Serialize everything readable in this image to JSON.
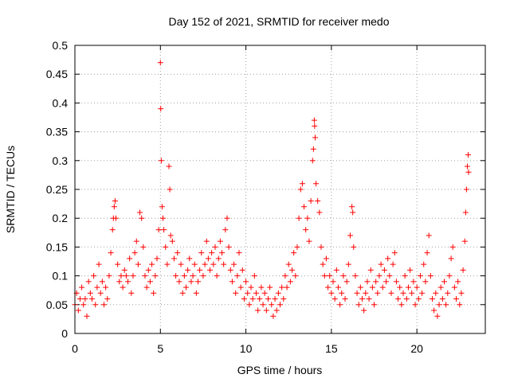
{
  "chart_data": {
    "type": "scatter",
    "title": "Day 152 of 2021, SRMTID for receiver medo",
    "xlabel": "GPS time / hours",
    "ylabel": "SRMTID / TECUs",
    "xlim": [
      0,
      24
    ],
    "ylim": [
      0,
      0.5
    ],
    "x_ticks": [
      0,
      5,
      10,
      15,
      20
    ],
    "x_tick_labels": [
      "0",
      "5",
      "10",
      "15",
      "20"
    ],
    "y_ticks": [
      0,
      0.05,
      0.1,
      0.15,
      0.2,
      0.25,
      0.3,
      0.35,
      0.4,
      0.45,
      0.5
    ],
    "y_tick_labels": [
      "0",
      "0.05",
      "0.1",
      "0.15",
      "0.2",
      "0.25",
      "0.3",
      "0.35",
      "0.4",
      "0.45",
      "0.5"
    ],
    "grid": true,
    "marker": "+",
    "color": "#ff0000",
    "series": [
      {
        "name": "SRMTID",
        "points": [
          [
            0.0,
            0.05
          ],
          [
            0.1,
            0.07
          ],
          [
            0.2,
            0.04
          ],
          [
            0.3,
            0.06
          ],
          [
            0.4,
            0.08
          ],
          [
            0.5,
            0.05
          ],
          [
            0.6,
            0.06
          ],
          [
            0.7,
            0.03
          ],
          [
            0.8,
            0.09
          ],
          [
            0.9,
            0.07
          ],
          [
            1.0,
            0.06
          ],
          [
            1.1,
            0.1
          ],
          [
            1.2,
            0.05
          ],
          [
            1.3,
            0.08
          ],
          [
            1.4,
            0.12
          ],
          [
            1.5,
            0.07
          ],
          [
            1.6,
            0.09
          ],
          [
            1.7,
            0.05
          ],
          [
            1.8,
            0.08
          ],
          [
            1.9,
            0.06
          ],
          [
            2.0,
            0.1
          ],
          [
            2.1,
            0.14
          ],
          [
            2.2,
            0.18
          ],
          [
            2.25,
            0.2
          ],
          [
            2.3,
            0.22
          ],
          [
            2.35,
            0.23
          ],
          [
            2.4,
            0.2
          ],
          [
            2.5,
            0.12
          ],
          [
            2.6,
            0.09
          ],
          [
            2.7,
            0.1
          ],
          [
            2.8,
            0.08
          ],
          [
            2.9,
            0.11
          ],
          [
            3.0,
            0.1
          ],
          [
            3.1,
            0.09
          ],
          [
            3.2,
            0.13
          ],
          [
            3.3,
            0.07
          ],
          [
            3.4,
            0.1
          ],
          [
            3.5,
            0.14
          ],
          [
            3.6,
            0.16
          ],
          [
            3.7,
            0.12
          ],
          [
            3.8,
            0.21
          ],
          [
            3.9,
            0.2
          ],
          [
            4.0,
            0.15
          ],
          [
            4.1,
            0.1
          ],
          [
            4.2,
            0.08
          ],
          [
            4.3,
            0.11
          ],
          [
            4.4,
            0.09
          ],
          [
            4.5,
            0.12
          ],
          [
            4.6,
            0.07
          ],
          [
            4.7,
            0.1
          ],
          [
            4.8,
            0.13
          ],
          [
            4.9,
            0.18
          ],
          [
            5.0,
            0.47
          ],
          [
            5.02,
            0.39
          ],
          [
            5.05,
            0.3
          ],
          [
            5.1,
            0.22
          ],
          [
            5.15,
            0.2
          ],
          [
            5.2,
            0.18
          ],
          [
            5.3,
            0.15
          ],
          [
            5.4,
            0.12
          ],
          [
            5.5,
            0.29
          ],
          [
            5.55,
            0.25
          ],
          [
            5.6,
            0.17
          ],
          [
            5.7,
            0.16
          ],
          [
            5.8,
            0.13
          ],
          [
            5.9,
            0.1
          ],
          [
            6.0,
            0.14
          ],
          [
            6.1,
            0.09
          ],
          [
            6.2,
            0.12
          ],
          [
            6.3,
            0.07
          ],
          [
            6.4,
            0.1
          ],
          [
            6.5,
            0.08
          ],
          [
            6.6,
            0.11
          ],
          [
            6.7,
            0.13
          ],
          [
            6.8,
            0.09
          ],
          [
            6.9,
            0.1
          ],
          [
            7.0,
            0.12
          ],
          [
            7.1,
            0.07
          ],
          [
            7.2,
            0.09
          ],
          [
            7.3,
            0.11
          ],
          [
            7.4,
            0.14
          ],
          [
            7.5,
            0.1
          ],
          [
            7.6,
            0.12
          ],
          [
            7.7,
            0.16
          ],
          [
            7.8,
            0.13
          ],
          [
            7.9,
            0.11
          ],
          [
            8.0,
            0.14
          ],
          [
            8.1,
            0.12
          ],
          [
            8.2,
            0.15
          ],
          [
            8.3,
            0.1
          ],
          [
            8.4,
            0.13
          ],
          [
            8.5,
            0.16
          ],
          [
            8.6,
            0.14
          ],
          [
            8.7,
            0.12
          ],
          [
            8.8,
            0.18
          ],
          [
            8.9,
            0.2
          ],
          [
            9.0,
            0.15
          ],
          [
            9.1,
            0.11
          ],
          [
            9.2,
            0.09
          ],
          [
            9.3,
            0.12
          ],
          [
            9.4,
            0.07
          ],
          [
            9.5,
            0.1
          ],
          [
            9.6,
            0.14
          ],
          [
            9.7,
            0.08
          ],
          [
            9.8,
            0.11
          ],
          [
            9.9,
            0.06
          ],
          [
            10.0,
            0.09
          ],
          [
            10.1,
            0.07
          ],
          [
            10.2,
            0.05
          ],
          [
            10.3,
            0.08
          ],
          [
            10.4,
            0.06
          ],
          [
            10.5,
            0.1
          ],
          [
            10.6,
            0.07
          ],
          [
            10.7,
            0.04
          ],
          [
            10.8,
            0.06
          ],
          [
            10.9,
            0.08
          ],
          [
            11.0,
            0.05
          ],
          [
            11.1,
            0.07
          ],
          [
            11.2,
            0.04
          ],
          [
            11.3,
            0.06
          ],
          [
            11.4,
            0.08
          ],
          [
            11.5,
            0.05
          ],
          [
            11.6,
            0.03
          ],
          [
            11.7,
            0.06
          ],
          [
            11.8,
            0.04
          ],
          [
            11.9,
            0.07
          ],
          [
            12.0,
            0.05
          ],
          [
            12.1,
            0.08
          ],
          [
            12.2,
            0.06
          ],
          [
            12.3,
            0.1
          ],
          [
            12.4,
            0.08
          ],
          [
            12.5,
            0.12
          ],
          [
            12.6,
            0.09
          ],
          [
            12.7,
            0.11
          ],
          [
            12.8,
            0.14
          ],
          [
            12.9,
            0.1
          ],
          [
            13.0,
            0.15
          ],
          [
            13.1,
            0.2
          ],
          [
            13.2,
            0.25
          ],
          [
            13.3,
            0.26
          ],
          [
            13.4,
            0.22
          ],
          [
            13.5,
            0.18
          ],
          [
            13.6,
            0.2
          ],
          [
            13.7,
            0.16
          ],
          [
            13.8,
            0.23
          ],
          [
            13.9,
            0.3
          ],
          [
            13.95,
            0.32
          ],
          [
            14.0,
            0.37
          ],
          [
            14.02,
            0.36
          ],
          [
            14.05,
            0.34
          ],
          [
            14.1,
            0.26
          ],
          [
            14.2,
            0.23
          ],
          [
            14.3,
            0.21
          ],
          [
            14.4,
            0.15
          ],
          [
            14.5,
            0.12
          ],
          [
            14.6,
            0.1
          ],
          [
            14.7,
            0.13
          ],
          [
            14.8,
            0.08
          ],
          [
            14.9,
            0.1
          ],
          [
            15.0,
            0.07
          ],
          [
            15.1,
            0.09
          ],
          [
            15.2,
            0.06
          ],
          [
            15.3,
            0.11
          ],
          [
            15.4,
            0.08
          ],
          [
            15.5,
            0.05
          ],
          [
            15.6,
            0.07
          ],
          [
            15.7,
            0.1
          ],
          [
            15.8,
            0.06
          ],
          [
            15.9,
            0.09
          ],
          [
            16.0,
            0.12
          ],
          [
            16.1,
            0.17
          ],
          [
            16.2,
            0.22
          ],
          [
            16.25,
            0.21
          ],
          [
            16.3,
            0.15
          ],
          [
            16.4,
            0.1
          ],
          [
            16.5,
            0.07
          ],
          [
            16.6,
            0.05
          ],
          [
            16.7,
            0.08
          ],
          [
            16.8,
            0.06
          ],
          [
            16.9,
            0.04
          ],
          [
            17.0,
            0.07
          ],
          [
            17.1,
            0.09
          ],
          [
            17.2,
            0.06
          ],
          [
            17.3,
            0.11
          ],
          [
            17.4,
            0.08
          ],
          [
            17.5,
            0.05
          ],
          [
            17.6,
            0.09
          ],
          [
            17.7,
            0.07
          ],
          [
            17.8,
            0.1
          ],
          [
            17.9,
            0.12
          ],
          [
            18.0,
            0.08
          ],
          [
            18.1,
            0.11
          ],
          [
            18.2,
            0.09
          ],
          [
            18.3,
            0.13
          ],
          [
            18.4,
            0.1
          ],
          [
            18.5,
            0.07
          ],
          [
            18.6,
            0.12
          ],
          [
            18.7,
            0.14
          ],
          [
            18.8,
            0.09
          ],
          [
            18.9,
            0.06
          ],
          [
            19.0,
            0.08
          ],
          [
            19.1,
            0.05
          ],
          [
            19.2,
            0.07
          ],
          [
            19.3,
            0.1
          ],
          [
            19.4,
            0.06
          ],
          [
            19.5,
            0.08
          ],
          [
            19.6,
            0.11
          ],
          [
            19.7,
            0.07
          ],
          [
            19.8,
            0.09
          ],
          [
            19.9,
            0.05
          ],
          [
            20.0,
            0.08
          ],
          [
            20.1,
            0.06
          ],
          [
            20.2,
            0.1
          ],
          [
            20.3,
            0.07
          ],
          [
            20.4,
            0.12
          ],
          [
            20.5,
            0.09
          ],
          [
            20.6,
            0.14
          ],
          [
            20.7,
            0.17
          ],
          [
            20.8,
            0.1
          ],
          [
            20.9,
            0.06
          ],
          [
            21.0,
            0.04
          ],
          [
            21.1,
            0.07
          ],
          [
            21.2,
            0.03
          ],
          [
            21.3,
            0.05
          ],
          [
            21.4,
            0.08
          ],
          [
            21.5,
            0.06
          ],
          [
            21.6,
            0.09
          ],
          [
            21.7,
            0.05
          ],
          [
            21.8,
            0.07
          ],
          [
            21.9,
            0.1
          ],
          [
            22.0,
            0.13
          ],
          [
            22.1,
            0.15
          ],
          [
            22.2,
            0.08
          ],
          [
            22.3,
            0.06
          ],
          [
            22.4,
            0.09
          ],
          [
            22.5,
            0.05
          ],
          [
            22.6,
            0.07
          ],
          [
            22.7,
            0.11
          ],
          [
            22.8,
            0.16
          ],
          [
            22.85,
            0.21
          ],
          [
            22.9,
            0.25
          ],
          [
            22.95,
            0.29
          ],
          [
            23.0,
            0.31
          ],
          [
            23.02,
            0.28
          ]
        ]
      }
    ]
  }
}
